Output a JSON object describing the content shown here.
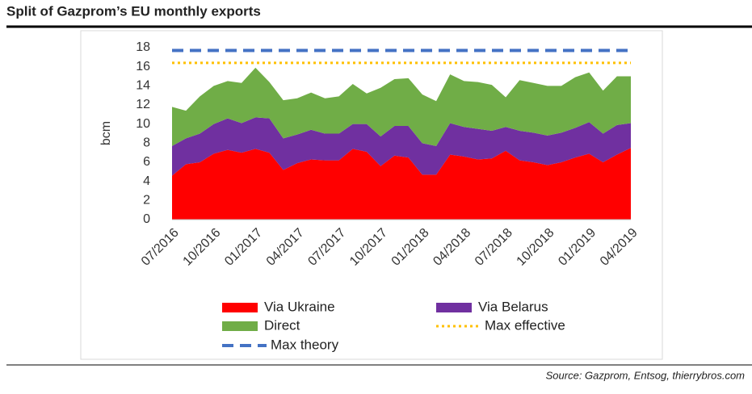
{
  "chart_data": {
    "type": "stacked_area",
    "title": "Split of Gazprom’s EU monthly exports",
    "y_label": "bcm",
    "source": "Source: Gazprom, Entsog, thierrybros.com",
    "categories": [
      "07/2016",
      null,
      null,
      "10/2016",
      null,
      null,
      "01/2017",
      null,
      null,
      "04/2017",
      null,
      null,
      "07/2017",
      null,
      null,
      "10/2017",
      null,
      null,
      "01/2018",
      null,
      null,
      "04/2018",
      null,
      null,
      "07/2018",
      null,
      null,
      "10/2018",
      null,
      null,
      "01/2019",
      null,
      null,
      "04/2019"
    ],
    "series": [
      {
        "name": "Via Ukraine",
        "color": "#ff0000",
        "values": [
          4.6,
          5.8,
          6.0,
          6.9,
          7.3,
          7.0,
          7.4,
          7.0,
          5.2,
          5.9,
          6.3,
          6.2,
          6.2,
          7.4,
          7.1,
          5.6,
          6.7,
          6.5,
          4.7,
          4.7,
          6.8,
          6.6,
          6.3,
          6.4,
          7.2,
          6.2,
          6.0,
          5.7,
          6.0,
          6.5,
          6.9,
          6.0,
          6.8,
          7.5
        ]
      },
      {
        "name": "Via Belarus",
        "color": "#7030a0",
        "values": [
          3.1,
          2.7,
          3.0,
          3.1,
          3.3,
          3.1,
          3.3,
          3.6,
          3.3,
          3.0,
          3.1,
          2.8,
          2.8,
          2.6,
          2.9,
          3.1,
          3.1,
          3.3,
          3.3,
          3.0,
          3.3,
          3.1,
          3.2,
          2.9,
          2.5,
          3.1,
          3.1,
          3.1,
          3.1,
          3.1,
          3.3,
          3.0,
          3.1,
          2.6
        ]
      },
      {
        "name": "Direct",
        "color": "#70ad47",
        "values": [
          4.1,
          2.9,
          3.9,
          4.0,
          3.9,
          4.2,
          5.2,
          3.8,
          4.0,
          3.8,
          3.9,
          3.7,
          3.9,
          4.2,
          3.2,
          5.1,
          4.9,
          5.0,
          5.1,
          4.7,
          5.1,
          4.8,
          4.9,
          4.8,
          3.1,
          5.3,
          5.2,
          5.2,
          4.9,
          5.3,
          5.2,
          4.5,
          5.1,
          4.9
        ]
      }
    ],
    "lines": [
      {
        "name": "Max effective",
        "color": "#ffc000",
        "value": 16.4,
        "style": "dotted"
      },
      {
        "name": "Max theory",
        "color": "#4472c4",
        "value": 17.7,
        "style": "dashed"
      }
    ],
    "ylim": [
      0,
      18
    ],
    "yticks": [
      0,
      2,
      4,
      6,
      8,
      10,
      12,
      14,
      16,
      18
    ]
  }
}
